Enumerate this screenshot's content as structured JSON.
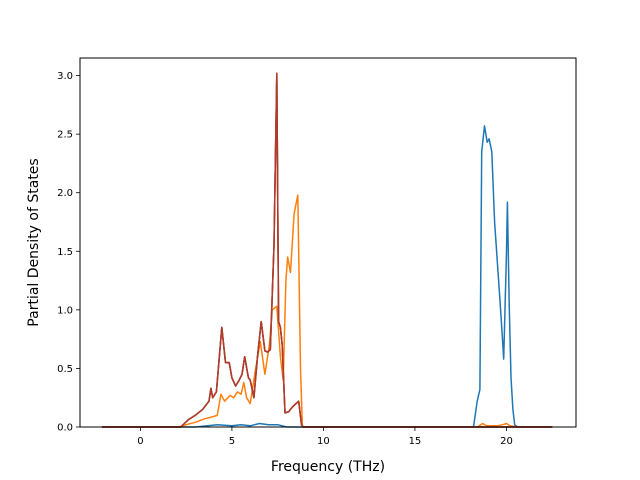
{
  "chart_data": {
    "type": "line",
    "title": "",
    "xlabel": "Frequency (THz)",
    "ylabel": "Partial Density of States",
    "xlim": [
      -3.3,
      23.8
    ],
    "ylim": [
      0,
      3.15
    ],
    "xticks": [
      0,
      5,
      10,
      15,
      20
    ],
    "yticks": [
      0.0,
      0.5,
      1.0,
      1.5,
      2.0,
      2.5,
      3.0
    ],
    "xtick_labels": [
      "0",
      "5",
      "10",
      "15",
      "20"
    ],
    "ytick_labels": [
      "0.0",
      "0.5",
      "1.0",
      "1.5",
      "2.0",
      "2.5",
      "3.0"
    ],
    "grid": false,
    "legend": "none",
    "series": [
      {
        "color": "#1f77b4",
        "points": [
          [
            -2.1,
            0
          ],
          [
            3.0,
            0
          ],
          [
            4.2,
            0.02
          ],
          [
            5.0,
            0.01
          ],
          [
            5.5,
            0.02
          ],
          [
            6.0,
            0.01
          ],
          [
            6.5,
            0.03
          ],
          [
            7.0,
            0.02
          ],
          [
            7.5,
            0.02
          ],
          [
            8.0,
            0
          ],
          [
            8.7,
            0
          ],
          [
            18.2,
            0
          ],
          [
            18.4,
            0.22
          ],
          [
            18.55,
            0.32
          ],
          [
            18.65,
            2.35
          ],
          [
            18.8,
            2.57
          ],
          [
            18.95,
            2.43
          ],
          [
            19.05,
            2.46
          ],
          [
            19.2,
            2.35
          ],
          [
            19.35,
            1.75
          ],
          [
            19.55,
            1.3
          ],
          [
            19.7,
            0.95
          ],
          [
            19.85,
            0.58
          ],
          [
            20.0,
            1.5
          ],
          [
            20.05,
            1.92
          ],
          [
            20.15,
            1.05
          ],
          [
            20.25,
            0.42
          ],
          [
            20.35,
            0.15
          ],
          [
            20.45,
            0.02
          ],
          [
            20.6,
            0
          ],
          [
            22.5,
            0
          ]
        ]
      },
      {
        "color": "#ff7f0e",
        "points": [
          [
            -2.1,
            0
          ],
          [
            2.2,
            0
          ],
          [
            2.5,
            0.02
          ],
          [
            3.0,
            0.04
          ],
          [
            3.5,
            0.07
          ],
          [
            4.0,
            0.09
          ],
          [
            4.2,
            0.1
          ],
          [
            4.4,
            0.28
          ],
          [
            4.6,
            0.22
          ],
          [
            4.9,
            0.27
          ],
          [
            5.1,
            0.25
          ],
          [
            5.3,
            0.3
          ],
          [
            5.5,
            0.28
          ],
          [
            5.65,
            0.38
          ],
          [
            5.8,
            0.25
          ],
          [
            6.0,
            0.2
          ],
          [
            6.3,
            0.5
          ],
          [
            6.55,
            0.73
          ],
          [
            6.8,
            0.45
          ],
          [
            7.05,
            0.7
          ],
          [
            7.2,
            1.0
          ],
          [
            7.45,
            1.03
          ],
          [
            7.65,
            0.6
          ],
          [
            7.8,
            0.4
          ],
          [
            7.95,
            1.25
          ],
          [
            8.05,
            1.45
          ],
          [
            8.2,
            1.32
          ],
          [
            8.4,
            1.82
          ],
          [
            8.6,
            1.98
          ],
          [
            8.75,
            0.5
          ],
          [
            8.85,
            0
          ],
          [
            18.4,
            0
          ],
          [
            18.7,
            0.03
          ],
          [
            18.9,
            0.01
          ],
          [
            19.5,
            0.01
          ],
          [
            19.8,
            0.02
          ],
          [
            20.0,
            0.03
          ],
          [
            20.2,
            0.01
          ],
          [
            20.6,
            0
          ],
          [
            22.5,
            0
          ]
        ]
      },
      {
        "color": "#2ca02c",
        "points": [
          [
            -2.1,
            0
          ],
          [
            2.2,
            0
          ],
          [
            2.6,
            0.06
          ],
          [
            3.0,
            0.1
          ],
          [
            3.4,
            0.15
          ],
          [
            3.75,
            0.22
          ],
          [
            3.85,
            0.33
          ],
          [
            3.95,
            0.25
          ],
          [
            4.15,
            0.3
          ],
          [
            4.45,
            0.85
          ],
          [
            4.65,
            0.55
          ],
          [
            4.85,
            0.55
          ],
          [
            5.0,
            0.42
          ],
          [
            5.2,
            0.35
          ],
          [
            5.4,
            0.4
          ],
          [
            5.55,
            0.45
          ],
          [
            5.7,
            0.6
          ],
          [
            5.9,
            0.42
          ],
          [
            6.0,
            0.4
          ],
          [
            6.2,
            0.25
          ],
          [
            6.4,
            0.6
          ],
          [
            6.6,
            0.9
          ],
          [
            6.8,
            0.65
          ],
          [
            6.95,
            0.64
          ],
          [
            7.1,
            0.66
          ],
          [
            7.3,
            1.55
          ],
          [
            7.45,
            3.02
          ],
          [
            7.55,
            0.9
          ],
          [
            7.65,
            0.85
          ],
          [
            7.75,
            0.7
          ],
          [
            7.9,
            0.12
          ],
          [
            8.1,
            0.13
          ],
          [
            8.3,
            0.17
          ],
          [
            8.5,
            0.2
          ],
          [
            8.65,
            0.22
          ],
          [
            8.8,
            0.02
          ],
          [
            8.9,
            0
          ],
          [
            22.5,
            0
          ]
        ]
      },
      {
        "color": "#d62728",
        "points": [
          [
            -2.1,
            0
          ],
          [
            2.2,
            0
          ],
          [
            2.6,
            0.06
          ],
          [
            3.0,
            0.1
          ],
          [
            3.4,
            0.15
          ],
          [
            3.75,
            0.22
          ],
          [
            3.85,
            0.33
          ],
          [
            3.95,
            0.25
          ],
          [
            4.15,
            0.3
          ],
          [
            4.45,
            0.85
          ],
          [
            4.65,
            0.55
          ],
          [
            4.85,
            0.55
          ],
          [
            5.0,
            0.42
          ],
          [
            5.2,
            0.35
          ],
          [
            5.4,
            0.4
          ],
          [
            5.55,
            0.45
          ],
          [
            5.7,
            0.6
          ],
          [
            5.9,
            0.42
          ],
          [
            6.0,
            0.4
          ],
          [
            6.2,
            0.25
          ],
          [
            6.4,
            0.6
          ],
          [
            6.6,
            0.9
          ],
          [
            6.8,
            0.65
          ],
          [
            6.95,
            0.64
          ],
          [
            7.1,
            0.66
          ],
          [
            7.3,
            1.55
          ],
          [
            7.45,
            3.02
          ],
          [
            7.55,
            0.9
          ],
          [
            7.65,
            0.85
          ],
          [
            7.75,
            0.7
          ],
          [
            7.9,
            0.12
          ],
          [
            8.1,
            0.13
          ],
          [
            8.3,
            0.17
          ],
          [
            8.5,
            0.2
          ],
          [
            8.65,
            0.22
          ],
          [
            8.8,
            0.02
          ],
          [
            8.9,
            0
          ],
          [
            22.5,
            0
          ]
        ]
      },
      {
        "color": "#b03a2e",
        "points": [
          [
            -2.1,
            0
          ],
          [
            2.2,
            0
          ],
          [
            2.6,
            0.06
          ],
          [
            3.0,
            0.1
          ],
          [
            3.4,
            0.15
          ],
          [
            3.75,
            0.22
          ],
          [
            3.85,
            0.33
          ],
          [
            3.95,
            0.25
          ],
          [
            4.15,
            0.3
          ],
          [
            4.45,
            0.85
          ],
          [
            4.65,
            0.55
          ],
          [
            4.85,
            0.55
          ],
          [
            5.0,
            0.42
          ],
          [
            5.2,
            0.35
          ],
          [
            5.4,
            0.4
          ],
          [
            5.55,
            0.45
          ],
          [
            5.7,
            0.6
          ],
          [
            5.9,
            0.42
          ],
          [
            6.0,
            0.4
          ],
          [
            6.2,
            0.25
          ],
          [
            6.4,
            0.6
          ],
          [
            6.6,
            0.9
          ],
          [
            6.8,
            0.65
          ],
          [
            6.95,
            0.64
          ],
          [
            7.1,
            0.66
          ],
          [
            7.3,
            1.55
          ],
          [
            7.45,
            3.02
          ],
          [
            7.55,
            0.9
          ],
          [
            7.65,
            0.85
          ],
          [
            7.75,
            0.7
          ],
          [
            7.9,
            0.12
          ],
          [
            8.1,
            0.13
          ],
          [
            8.3,
            0.17
          ],
          [
            8.5,
            0.2
          ],
          [
            8.65,
            0.22
          ],
          [
            8.8,
            0.02
          ],
          [
            8.9,
            0
          ],
          [
            22.5,
            0
          ]
        ]
      }
    ]
  }
}
